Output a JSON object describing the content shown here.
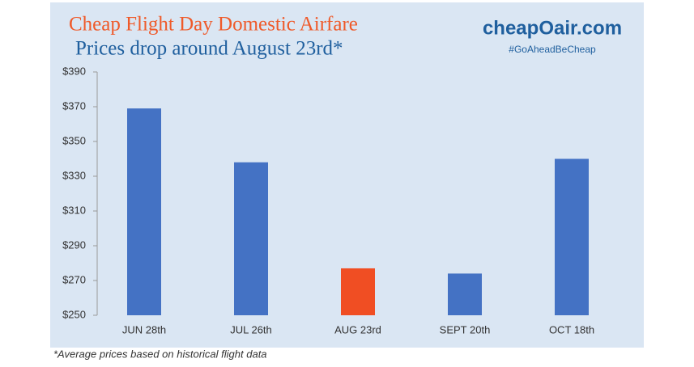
{
  "chart_data": {
    "type": "bar",
    "title": "Cheap Flight Day Domestic Airfare",
    "subtitle": "Prices drop around August 23rd*",
    "logo": "cheapOair.com",
    "tagline": "#GoAheadBeCheap",
    "footnote": "*Average prices based on historical flight data",
    "categories": [
      "JUN 28th",
      "JUL 26th",
      "AUG 23rd",
      "SEPT 20th",
      "OCT 18th"
    ],
    "values": [
      369,
      338,
      277,
      274,
      340
    ],
    "colors": [
      "#4472c4",
      "#4472c4",
      "#f04e23",
      "#4472c4",
      "#4472c4"
    ],
    "ylim": [
      250,
      390
    ],
    "yticks": [
      {
        "value": 250,
        "label": "$250"
      },
      {
        "value": 270,
        "label": "$270"
      },
      {
        "value": 290,
        "label": "$290"
      },
      {
        "value": 310,
        "label": "$310"
      },
      {
        "value": 330,
        "label": "$330"
      },
      {
        "value": 350,
        "label": "$350"
      },
      {
        "value": 370,
        "label": "$370"
      },
      {
        "value": 390,
        "label": "$390"
      }
    ],
    "grid": false
  }
}
